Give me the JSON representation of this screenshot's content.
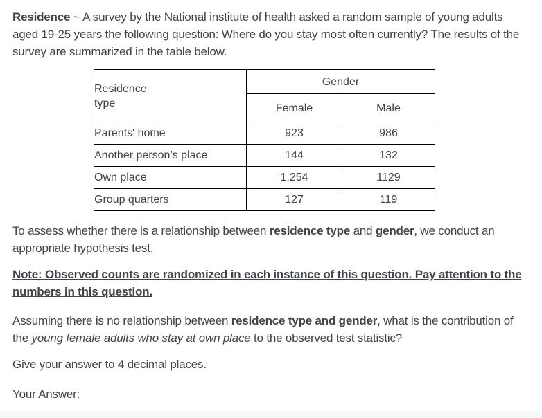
{
  "page": {
    "background": "#ffffff",
    "text_color": "#414549",
    "table_border_color": "#000000",
    "footer_strip_color": "#f7f8f8"
  },
  "intro": {
    "title_bold": "Residence",
    "rest": " ~ A survey by the National institute of health asked a random sample of young adults aged 19-25 years the following question: Where do you stay most often currently? The results of the survey are summarized in the table below."
  },
  "survey_table": {
    "row_header": "Residence\ntype",
    "group_header": "Gender",
    "column_headers": [
      "Female",
      "Male"
    ],
    "rows": [
      {
        "residence_type": "Parents' home",
        "female": "923",
        "male": "986"
      },
      {
        "residence_type": "Another person’s place",
        "female": "144",
        "male": "132"
      },
      {
        "residence_type": "Own place",
        "female": "1,254",
        "male": "1129"
      },
      {
        "residence_type": "Group quarters",
        "female": "127",
        "male": "119"
      }
    ]
  },
  "assess_paragraph": {
    "pre": "To assess whether there is a relationship between ",
    "bold_1": "residence type",
    "mid": " and ",
    "bold_2": "gender",
    "post": ", we conduct an appropriate hypothesis test."
  },
  "note_paragraph": {
    "text": "Note: Observed counts are randomized in each instance of this question. Pay attention to the numbers in this question."
  },
  "question_paragraph": {
    "pre": "Assuming there is no relationship between ",
    "bold": "residence type and gender",
    "mid": ", what is the contribution of the ",
    "italic": "young female adults who stay at own place",
    "post": " to the observed test statistic?"
  },
  "instruction": "Give your answer to 4 decimal places.",
  "answer_label": "Your Answer:"
}
